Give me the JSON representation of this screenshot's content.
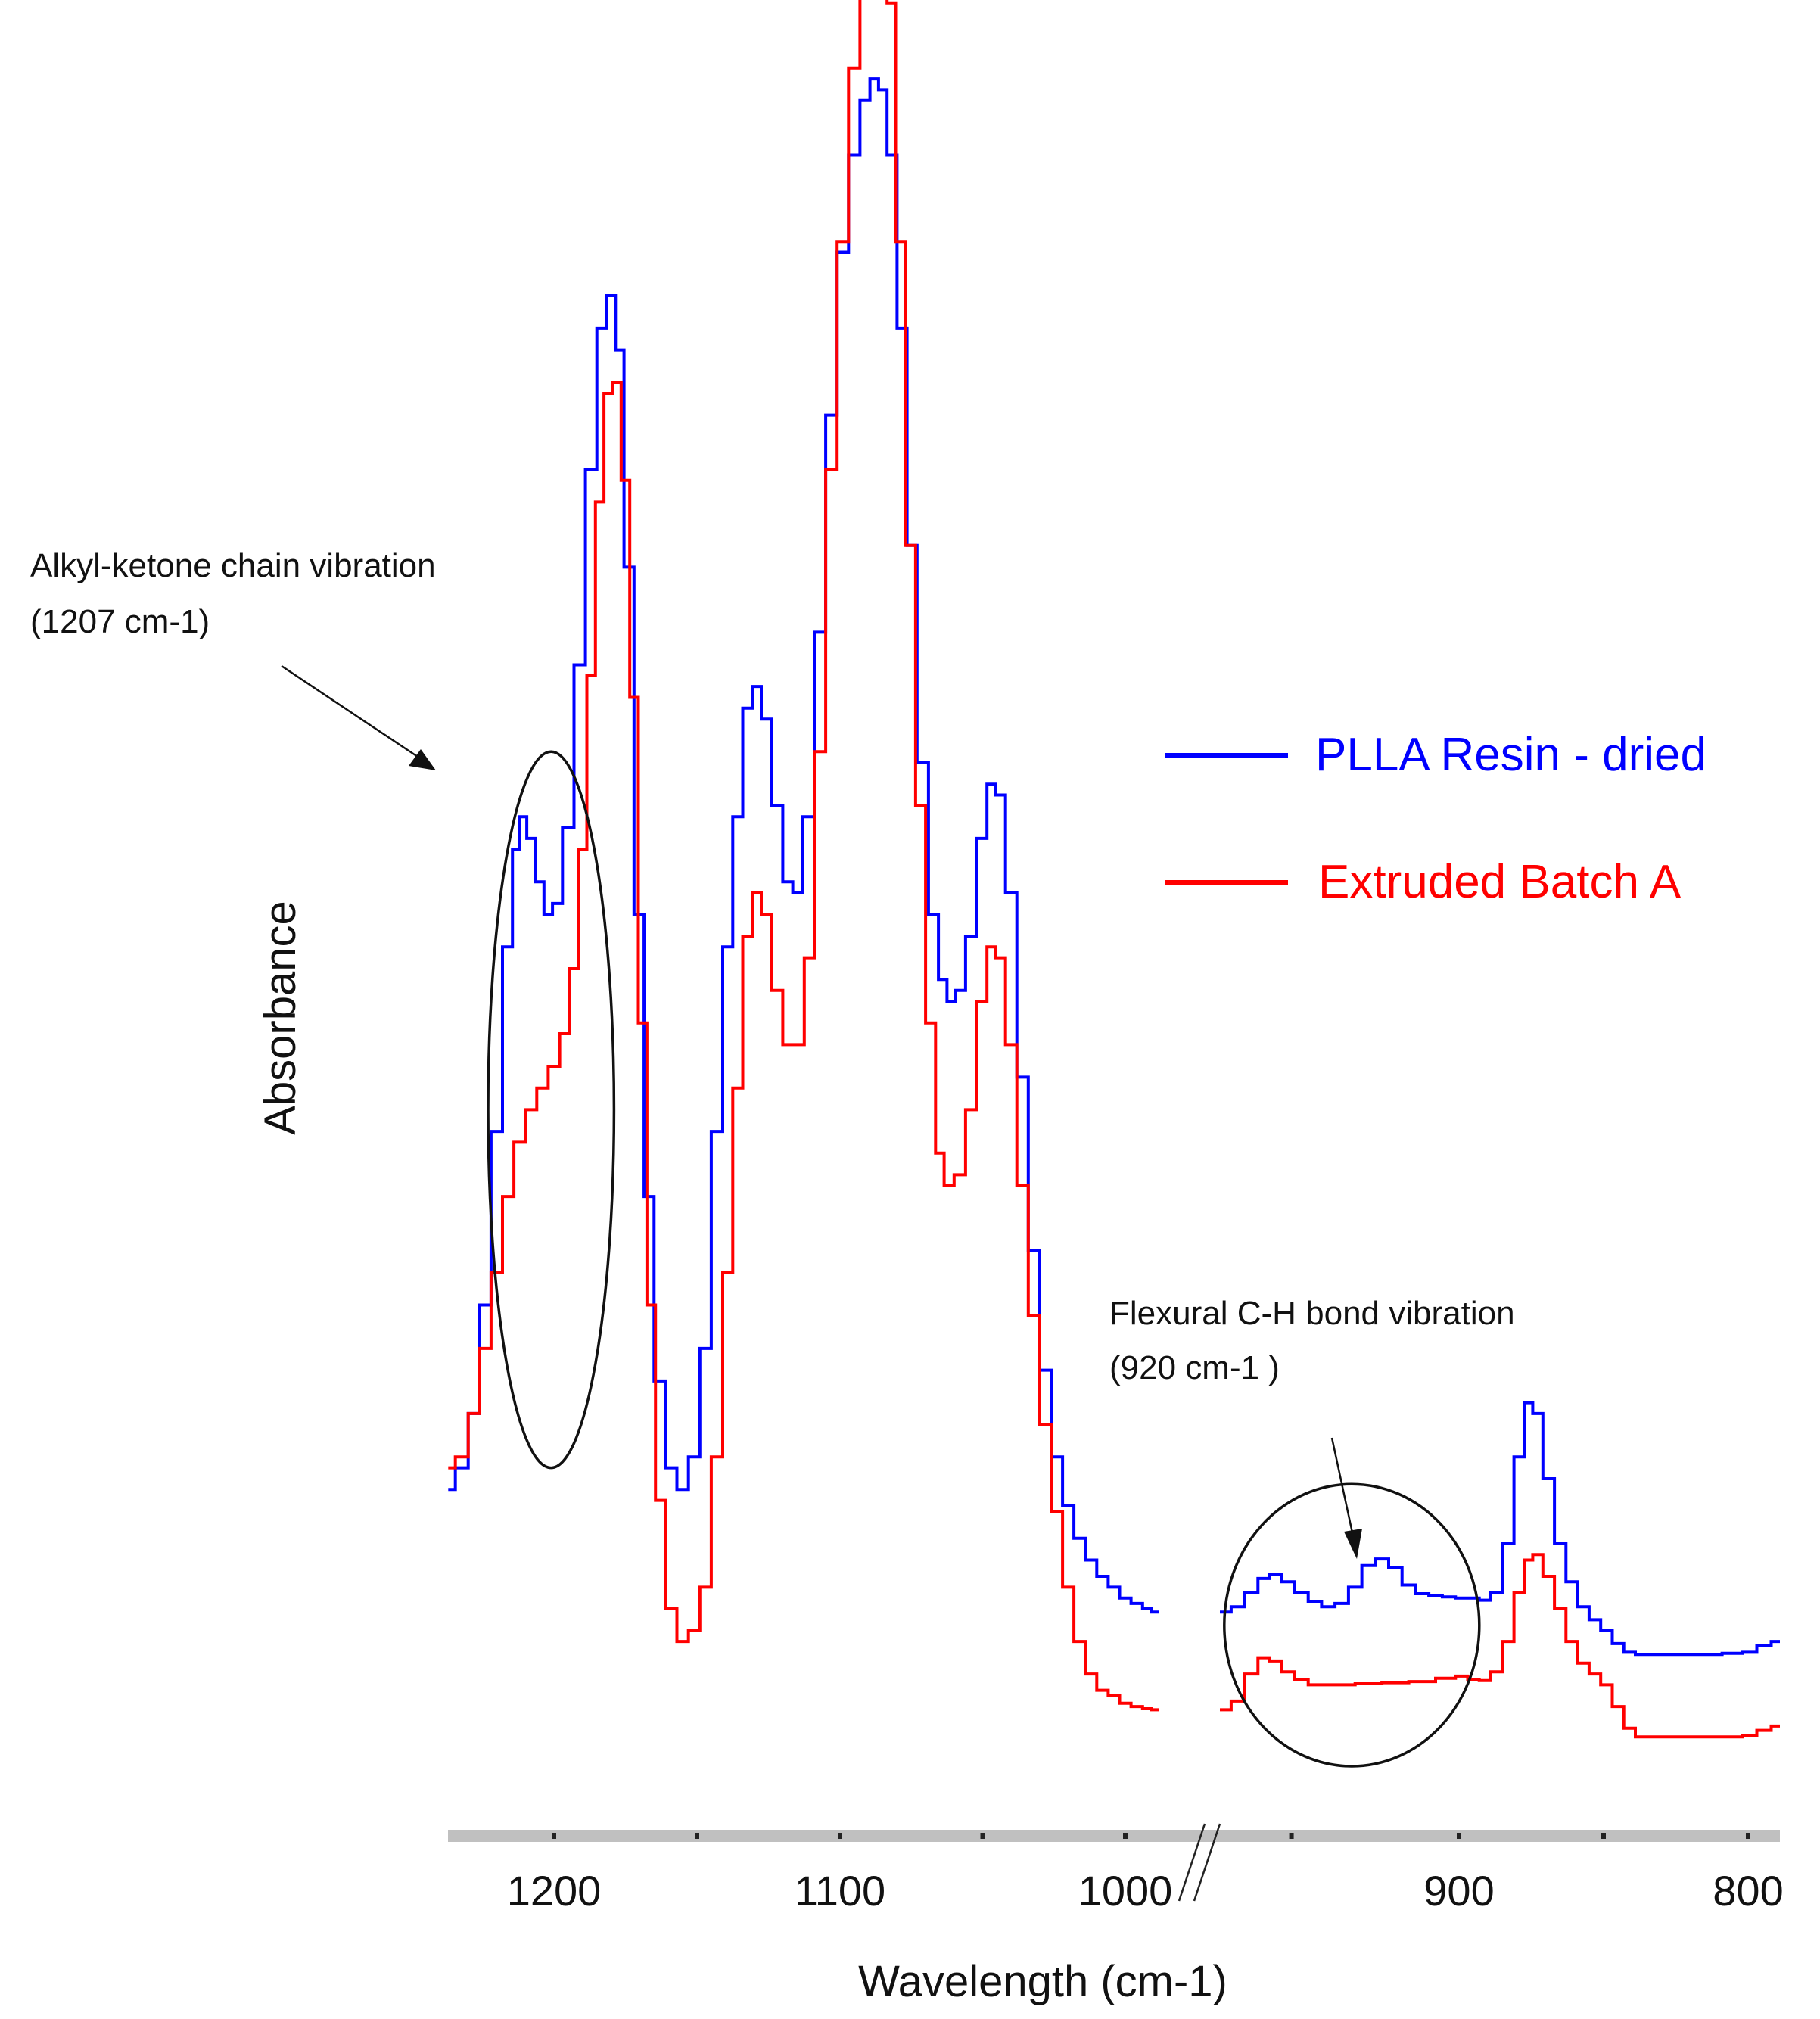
{
  "chart_data": {
    "type": "line",
    "title": "",
    "xlabel": "Wavelength (cm-1)",
    "ylabel": "Absorbance",
    "x_reversed": true,
    "axis_break_between": [
      990,
      970
    ],
    "xlim": [
      1237,
      789
    ],
    "x_ticks": [
      {
        "value": 1200,
        "label": "1200"
      },
      {
        "value": 1100,
        "label": "1100"
      },
      {
        "value": 1000,
        "label": "1000"
      },
      {
        "value": 900,
        "label": "900"
      },
      {
        "value": 800,
        "label": "800"
      }
    ],
    "minor_ticks": [
      1200,
      1150,
      1100,
      1050,
      1000,
      950,
      900,
      850,
      800
    ],
    "y_ticks_shown": false,
    "grid": false,
    "legend_position": "right",
    "series": [
      {
        "name": "PLLA Resin - dried",
        "color": "#0000ff",
        "points": [
          [
            1237,
            0.05
          ],
          [
            1232,
            0.07
          ],
          [
            1228,
            0.12
          ],
          [
            1224,
            0.22
          ],
          [
            1220,
            0.38
          ],
          [
            1216,
            0.55
          ],
          [
            1213,
            0.64
          ],
          [
            1211,
            0.67
          ],
          [
            1208,
            0.65
          ],
          [
            1205,
            0.61
          ],
          [
            1202,
            0.58
          ],
          [
            1199,
            0.59
          ],
          [
            1195,
            0.66
          ],
          [
            1191,
            0.81
          ],
          [
            1187,
            0.99
          ],
          [
            1183,
            1.12
          ],
          [
            1180,
            1.15
          ],
          [
            1177,
            1.1
          ],
          [
            1174,
            0.9
          ],
          [
            1170,
            0.58
          ],
          [
            1167,
            0.32
          ],
          [
            1163,
            0.15
          ],
          [
            1159,
            0.07
          ],
          [
            1155,
            0.05
          ],
          [
            1151,
            0.08
          ],
          [
            1147,
            0.18
          ],
          [
            1143,
            0.38
          ],
          [
            1139,
            0.55
          ],
          [
            1136,
            0.67
          ],
          [
            1132,
            0.77
          ],
          [
            1129,
            0.79
          ],
          [
            1126,
            0.76
          ],
          [
            1122,
            0.68
          ],
          [
            1118,
            0.61
          ],
          [
            1115,
            0.6
          ],
          [
            1111,
            0.67
          ],
          [
            1107,
            0.84
          ],
          [
            1103,
            1.04
          ],
          [
            1099,
            1.19
          ],
          [
            1095,
            1.28
          ],
          [
            1091,
            1.33
          ],
          [
            1088,
            1.35
          ],
          [
            1085,
            1.34
          ],
          [
            1082,
            1.28
          ],
          [
            1078,
            1.12
          ],
          [
            1075,
            0.92
          ],
          [
            1071,
            0.72
          ],
          [
            1067,
            0.58
          ],
          [
            1064,
            0.52
          ],
          [
            1061,
            0.5
          ],
          [
            1058,
            0.51
          ],
          [
            1054,
            0.56
          ],
          [
            1050,
            0.65
          ],
          [
            1047,
            0.7
          ],
          [
            1044,
            0.69
          ],
          [
            1040,
            0.6
          ],
          [
            1036,
            0.43
          ],
          [
            1032,
            0.27
          ],
          [
            1028,
            0.16
          ],
          [
            1024,
            0.08
          ],
          [
            1020,
            0.035
          ],
          [
            1016,
            0.005
          ],
          [
            1012,
            -0.015
          ],
          [
            1008,
            -0.03
          ],
          [
            1004,
            -0.04
          ],
          [
            1000,
            -0.05
          ],
          [
            996,
            -0.055
          ],
          [
            992,
            -0.06
          ],
          [
            990,
            -0.063
          ],
          [
            970,
            -0.063
          ],
          [
            966,
            -0.058
          ],
          [
            962,
            -0.045
          ],
          [
            958,
            -0.032
          ],
          [
            955,
            -0.028
          ],
          [
            951,
            -0.035
          ],
          [
            947,
            -0.045
          ],
          [
            943,
            -0.053
          ],
          [
            939,
            -0.058
          ],
          [
            935,
            -0.055
          ],
          [
            931,
            -0.04
          ],
          [
            927,
            -0.02
          ],
          [
            923,
            -0.014
          ],
          [
            919,
            -0.022
          ],
          [
            915,
            -0.038
          ],
          [
            911,
            -0.046
          ],
          [
            907,
            -0.048
          ],
          [
            903,
            -0.049
          ],
          [
            899,
            -0.05
          ],
          [
            895,
            -0.05
          ],
          [
            891,
            -0.052
          ],
          [
            887,
            -0.045
          ],
          [
            883,
            0.0
          ],
          [
            879,
            0.08
          ],
          [
            876,
            0.13
          ],
          [
            873,
            0.12
          ],
          [
            869,
            0.06
          ],
          [
            865,
            0.0
          ],
          [
            861,
            -0.035
          ],
          [
            857,
            -0.058
          ],
          [
            853,
            -0.07
          ],
          [
            849,
            -0.08
          ],
          [
            845,
            -0.092
          ],
          [
            841,
            -0.1
          ],
          [
            837,
            -0.102
          ],
          [
            829,
            -0.102
          ],
          [
            821,
            -0.102
          ],
          [
            813,
            -0.102
          ],
          [
            805,
            -0.101
          ],
          [
            799,
            -0.1
          ],
          [
            795,
            -0.094
          ],
          [
            789,
            -0.09
          ]
        ]
      },
      {
        "name": "Extruded Batch A",
        "color": "#ff0000",
        "points": [
          [
            1237,
            0.07
          ],
          [
            1232,
            0.08
          ],
          [
            1228,
            0.12
          ],
          [
            1224,
            0.18
          ],
          [
            1220,
            0.25
          ],
          [
            1216,
            0.32
          ],
          [
            1212,
            0.37
          ],
          [
            1208,
            0.4
          ],
          [
            1204,
            0.42
          ],
          [
            1200,
            0.44
          ],
          [
            1196,
            0.47
          ],
          [
            1193,
            0.53
          ],
          [
            1190,
            0.64
          ],
          [
            1187,
            0.8
          ],
          [
            1184,
            0.96
          ],
          [
            1181,
            1.06
          ],
          [
            1178,
            1.07
          ],
          [
            1175,
            0.98
          ],
          [
            1172,
            0.78
          ],
          [
            1169,
            0.48
          ],
          [
            1166,
            0.22
          ],
          [
            1163,
            0.04
          ],
          [
            1159,
            -0.06
          ],
          [
            1155,
            -0.09
          ],
          [
            1151,
            -0.08
          ],
          [
            1147,
            -0.04
          ],
          [
            1143,
            0.08
          ],
          [
            1139,
            0.25
          ],
          [
            1136,
            0.42
          ],
          [
            1132,
            0.56
          ],
          [
            1129,
            0.6
          ],
          [
            1126,
            0.58
          ],
          [
            1122,
            0.51
          ],
          [
            1118,
            0.46
          ],
          [
            1114,
            0.46
          ],
          [
            1111,
            0.54
          ],
          [
            1107,
            0.73
          ],
          [
            1103,
            0.99
          ],
          [
            1099,
            1.2
          ],
          [
            1095,
            1.36
          ],
          [
            1091,
            1.45
          ],
          [
            1088,
            1.5
          ],
          [
            1085,
            1.5
          ],
          [
            1082,
            1.42
          ],
          [
            1079,
            1.2
          ],
          [
            1075,
            0.92
          ],
          [
            1072,
            0.68
          ],
          [
            1068,
            0.48
          ],
          [
            1065,
            0.36
          ],
          [
            1062,
            0.33
          ],
          [
            1058,
            0.34
          ],
          [
            1054,
            0.4
          ],
          [
            1050,
            0.5
          ],
          [
            1047,
            0.55
          ],
          [
            1044,
            0.54
          ],
          [
            1040,
            0.46
          ],
          [
            1036,
            0.33
          ],
          [
            1032,
            0.21
          ],
          [
            1028,
            0.11
          ],
          [
            1024,
            0.03
          ],
          [
            1020,
            -0.04
          ],
          [
            1016,
            -0.09
          ],
          [
            1012,
            -0.12
          ],
          [
            1008,
            -0.135
          ],
          [
            1004,
            -0.14
          ],
          [
            1000,
            -0.147
          ],
          [
            996,
            -0.15
          ],
          [
            992,
            -0.152
          ],
          [
            990,
            -0.153
          ],
          [
            970,
            -0.153
          ],
          [
            966,
            -0.145
          ],
          [
            962,
            -0.12
          ],
          [
            958,
            -0.105
          ],
          [
            955,
            -0.108
          ],
          [
            951,
            -0.118
          ],
          [
            947,
            -0.125
          ],
          [
            943,
            -0.13
          ],
          [
            935,
            -0.13
          ],
          [
            927,
            -0.129
          ],
          [
            919,
            -0.128
          ],
          [
            911,
            -0.127
          ],
          [
            903,
            -0.124
          ],
          [
            899,
            -0.122
          ],
          [
            895,
            -0.125
          ],
          [
            891,
            -0.126
          ],
          [
            887,
            -0.118
          ],
          [
            883,
            -0.09
          ],
          [
            879,
            -0.045
          ],
          [
            876,
            -0.015
          ],
          [
            873,
            -0.01
          ],
          [
            869,
            -0.03
          ],
          [
            865,
            -0.06
          ],
          [
            861,
            -0.09
          ],
          [
            857,
            -0.11
          ],
          [
            853,
            -0.12
          ],
          [
            849,
            -0.13
          ],
          [
            845,
            -0.15
          ],
          [
            841,
            -0.17
          ],
          [
            837,
            -0.178
          ],
          [
            829,
            -0.178
          ],
          [
            821,
            -0.178
          ],
          [
            813,
            -0.178
          ],
          [
            805,
            -0.178
          ],
          [
            799,
            -0.177
          ],
          [
            795,
            -0.172
          ],
          [
            789,
            -0.168
          ]
        ]
      }
    ],
    "annotations": [
      {
        "text_line1": "Alkyl-ketone chain vibration",
        "text_line2": "(1207 cm-1)",
        "ellipse_center": [
          1201,
          0.4
        ],
        "ellipse_radius_x": 22,
        "ellipse_radius_y": 0.33
      },
      {
        "text_line1": "Flexural C-H bond vibration",
        "text_line2": "(920 cm-1 )",
        "ellipse_center": [
          932,
          -0.075
        ],
        "ellipse_radius_x": 39,
        "ellipse_radius_y": 0.13
      }
    ],
    "axis_bar_color": "#c0c0c0"
  }
}
